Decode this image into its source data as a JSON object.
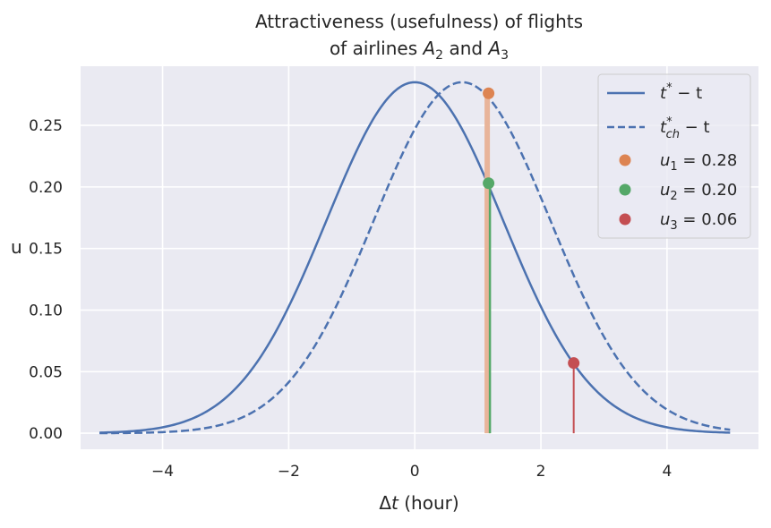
{
  "chart_data": {
    "type": "line",
    "title_line1": "Attractiveness (usefulness) of flights",
    "title_line2_prefix": "of airlines ",
    "title_line2_a2_base": "A",
    "title_line2_a2_sub": "2",
    "title_line2_and": " and ",
    "title_line2_a3_base": "A",
    "title_line2_a3_sub": "3",
    "xlabel_delta": "Δ",
    "xlabel_var": "t",
    "xlabel_unit": " (hour)",
    "ylabel": "u",
    "xlim": [
      -5.3,
      5.45
    ],
    "ylim": [
      -0.013,
      0.298
    ],
    "xticks": [
      -4,
      -2,
      0,
      2,
      4
    ],
    "xtick_labels": [
      "−4",
      "−2",
      "0",
      "2",
      "4"
    ],
    "yticks": [
      0.0,
      0.05,
      0.1,
      0.15,
      0.2,
      0.25
    ],
    "ytick_labels": [
      "0.00",
      "0.05",
      "0.10",
      "0.15",
      "0.20",
      "0.25"
    ],
    "grid": true,
    "legend_position": "top-right",
    "curves": {
      "amplitude": 0.285,
      "sigma": 1.4,
      "x_range": [
        -5,
        5
      ],
      "solid_mean": 0.0,
      "dashed_mean": 0.75
    },
    "series": [
      {
        "name": "t* − t",
        "style": "solid",
        "color": "#4c72b0"
      },
      {
        "name": "t*ch − t",
        "style": "dashed",
        "color": "#4c72b0"
      }
    ],
    "points": [
      {
        "name": "u1 = 0.28",
        "x": 1.17,
        "y": 0.276,
        "color": "#dd8452",
        "stem_color": "#e8b49a",
        "stem_width": 6
      },
      {
        "name": "u2 = 0.20",
        "x": 1.17,
        "y": 0.203,
        "color": "#55a868",
        "stem_color": "#55a868",
        "stem_width": 2.5
      },
      {
        "name": "u3 = 0.06",
        "x": 2.52,
        "y": 0.057,
        "color": "#c44e52",
        "stem_color": "#c44e52",
        "stem_width": 2
      }
    ],
    "legend": {
      "l1_base": "t",
      "l1_sup": "*",
      "l1_rest": " − t",
      "l2_base": "t",
      "l2_sup": "*",
      "l2_sub": "ch",
      "l2_rest": " − t",
      "l3_base": "u",
      "l3_sub": "1",
      "l3_rest": " = 0.28",
      "l4_base": "u",
      "l4_sub": "2",
      "l4_rest": " = 0.20",
      "l5_base": "u",
      "l5_sub": "3",
      "l5_rest": " = 0.06"
    },
    "colors": {
      "plot_bg": "#eaeaf2",
      "grid": "#ffffff",
      "line": "#4c72b0"
    }
  }
}
